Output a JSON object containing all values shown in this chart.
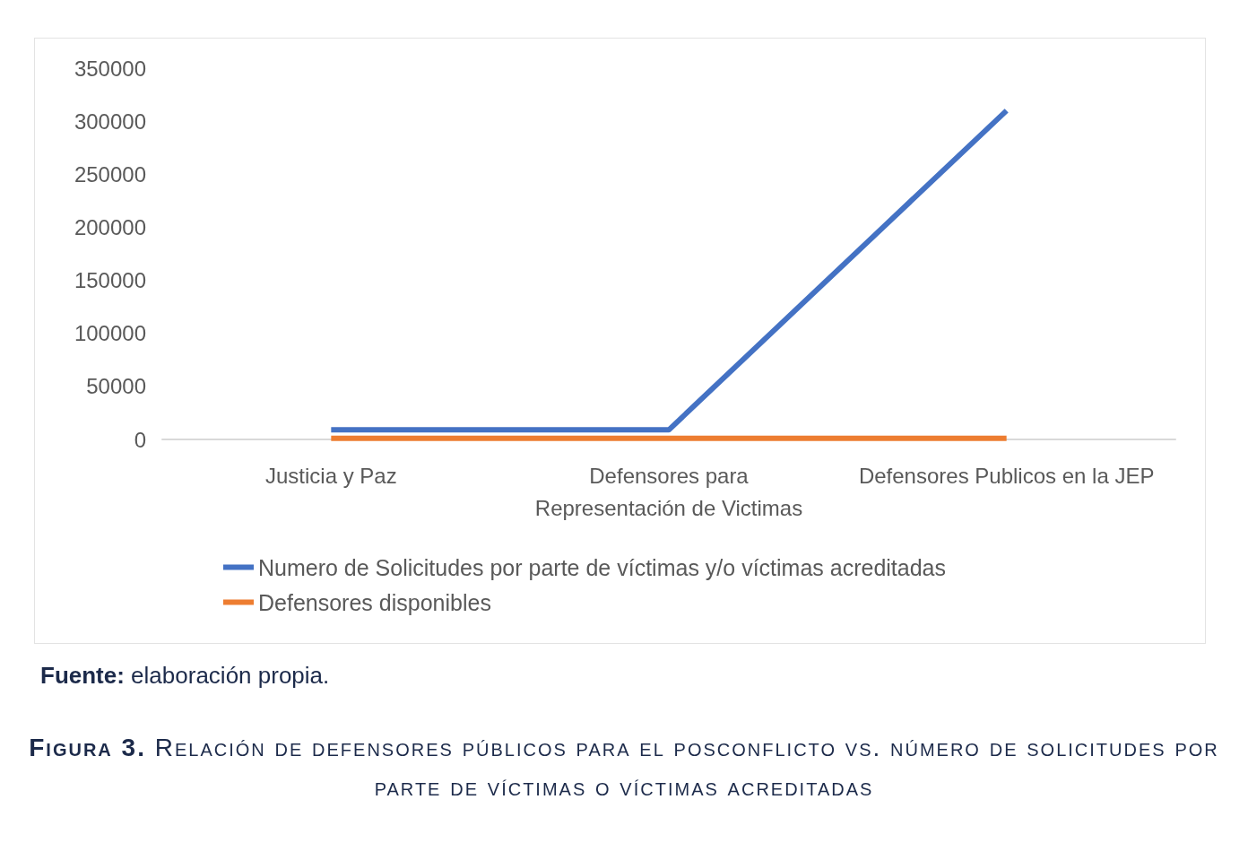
{
  "chart_data": {
    "type": "line",
    "title": "Figura 3. Relación de defensores públicos para el posconflicto vs. número de solicitudes por parte de víctimas o víctimas acreditadas",
    "annotations": [
      "Fuente: elaboración propia."
    ],
    "categories": [
      "Justicia y Paz",
      "Defensores para\nRepresentación de Victimas",
      "Defensores Publicos en la JEP"
    ],
    "series": [
      {
        "name": "Numero de Solicitudes por parte de víctimas y/o víctimas acreditadas",
        "color": "#4472c4",
        "values": [
          9000,
          9000,
          310000
        ]
      },
      {
        "name": "Defensores disponibles",
        "color": "#ed7d31",
        "values": [
          1000,
          1000,
          1000
        ]
      }
    ],
    "ylim": [
      0,
      350000
    ],
    "yticks": [
      0,
      50000,
      100000,
      150000,
      200000,
      250000,
      300000,
      350000
    ],
    "legend": "bottom",
    "marker": "none",
    "line_style": "solid"
  }
}
